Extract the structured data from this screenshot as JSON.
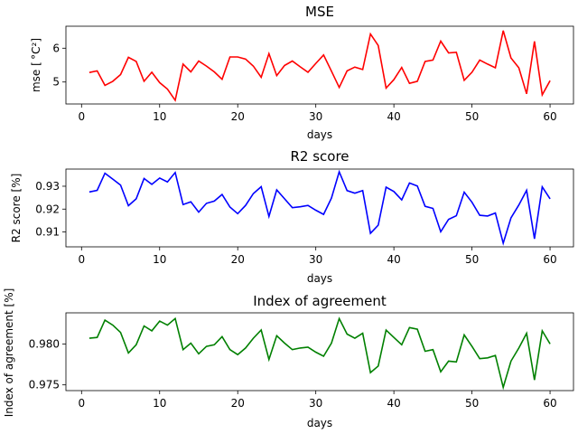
{
  "chart_data": [
    {
      "type": "line",
      "title": "MSE",
      "xlabel": "days",
      "ylabel": "mse [ °C²]",
      "xlim": [
        -2,
        63
      ],
      "ylim": [
        4.35,
        6.65
      ],
      "xticks": [
        0,
        10,
        20,
        30,
        40,
        50,
        60
      ],
      "xtick_labels": [
        "0",
        "10",
        "20",
        "30",
        "40",
        "50",
        "60"
      ],
      "yticks": [
        5,
        6
      ],
      "ytick_labels": [
        "5",
        "6"
      ],
      "color": "#ff0000",
      "series": [
        {
          "x": [
            1,
            2,
            3,
            4,
            5,
            6,
            7,
            8,
            9,
            10,
            11,
            12,
            13,
            14,
            15,
            16,
            17,
            18,
            19,
            20,
            21,
            22,
            23,
            24,
            25,
            26,
            27,
            28,
            29,
            30,
            31,
            32,
            33,
            34,
            35,
            36,
            37,
            38,
            39,
            40,
            41,
            42,
            43,
            44,
            45,
            46,
            47,
            48,
            49,
            50,
            51,
            52,
            53,
            54,
            55,
            56,
            57,
            58,
            59,
            60
          ],
          "values": [
            5.28,
            5.33,
            4.9,
            5.02,
            5.22,
            5.73,
            5.61,
            5.02,
            5.29,
            4.98,
            4.79,
            4.46,
            5.53,
            5.3,
            5.62,
            5.47,
            5.3,
            5.08,
            5.74,
            5.74,
            5.68,
            5.47,
            5.14,
            5.84,
            5.19,
            5.49,
            5.62,
            5.45,
            5.29,
            5.55,
            5.8,
            5.32,
            4.84,
            5.33,
            5.44,
            5.37,
            6.42,
            6.08,
            4.82,
            5.07,
            5.43,
            4.96,
            5.02,
            5.61,
            5.65,
            6.21,
            5.86,
            5.88,
            5.05,
            5.29,
            5.65,
            5.53,
            5.42,
            6.52,
            5.71,
            5.42,
            4.65,
            6.2,
            4.62,
            5.04
          ]
        }
      ]
    },
    {
      "type": "line",
      "title": "R2 score",
      "xlabel": "days",
      "ylabel": "R2 score [%]",
      "xlim": [
        -2,
        63
      ],
      "ylim": [
        0.9035,
        0.9375
      ],
      "xticks": [
        0,
        10,
        20,
        30,
        40,
        50,
        60
      ],
      "xtick_labels": [
        "0",
        "10",
        "20",
        "30",
        "40",
        "50",
        "60"
      ],
      "yticks": [
        0.91,
        0.92,
        0.93
      ],
      "ytick_labels": [
        "0.91",
        "0.92",
        "0.93"
      ],
      "color": "#0000ff",
      "series": [
        {
          "x": [
            1,
            2,
            3,
            4,
            5,
            6,
            7,
            8,
            9,
            10,
            11,
            12,
            13,
            14,
            15,
            16,
            17,
            18,
            19,
            20,
            21,
            22,
            23,
            24,
            25,
            26,
            27,
            28,
            29,
            30,
            31,
            32,
            33,
            34,
            35,
            36,
            37,
            38,
            39,
            40,
            41,
            42,
            43,
            44,
            45,
            46,
            47,
            48,
            49,
            50,
            51,
            52,
            53,
            54,
            55,
            56,
            57,
            58,
            59,
            60
          ],
          "values": [
            0.9275,
            0.9282,
            0.9357,
            0.9331,
            0.9305,
            0.9215,
            0.9245,
            0.9334,
            0.9308,
            0.9336,
            0.9319,
            0.936,
            0.922,
            0.9232,
            0.9187,
            0.9225,
            0.9235,
            0.9264,
            0.9209,
            0.918,
            0.9216,
            0.9268,
            0.9298,
            0.9168,
            0.9284,
            0.9245,
            0.9206,
            0.921,
            0.9216,
            0.9195,
            0.9177,
            0.9248,
            0.9363,
            0.9281,
            0.927,
            0.9281,
            0.9094,
            0.913,
            0.9296,
            0.9277,
            0.924,
            0.9314,
            0.9301,
            0.9212,
            0.9203,
            0.9101,
            0.9155,
            0.9171,
            0.9274,
            0.923,
            0.9173,
            0.917,
            0.9183,
            0.9051,
            0.9162,
            0.9218,
            0.9282,
            0.907,
            0.9297,
            0.9245
          ]
        }
      ]
    },
    {
      "type": "line",
      "title": "Index of agreement",
      "xlabel": "days",
      "ylabel": "Index of agreement [%]",
      "xlim": [
        -2,
        63
      ],
      "ylim": [
        0.9743,
        0.9838
      ],
      "xticks": [
        0,
        10,
        20,
        30,
        40,
        50,
        60
      ],
      "xtick_labels": [
        "0",
        "10",
        "20",
        "30",
        "40",
        "50",
        "60"
      ],
      "yticks": [
        0.975,
        0.98
      ],
      "ytick_labels": [
        "0.975",
        "0.980"
      ],
      "color": "#008000",
      "series": [
        {
          "x": [
            1,
            2,
            3,
            4,
            5,
            6,
            7,
            8,
            9,
            10,
            11,
            12,
            13,
            14,
            15,
            16,
            17,
            18,
            19,
            20,
            21,
            22,
            23,
            24,
            25,
            26,
            27,
            28,
            29,
            30,
            31,
            32,
            33,
            34,
            35,
            36,
            37,
            38,
            39,
            40,
            41,
            42,
            43,
            44,
            45,
            46,
            47,
            48,
            49,
            50,
            51,
            52,
            53,
            54,
            55,
            56,
            57,
            58,
            59,
            60
          ],
          "values": [
            0.9807,
            0.9808,
            0.9829,
            0.9823,
            0.9814,
            0.9789,
            0.9799,
            0.9822,
            0.9816,
            0.9828,
            0.9823,
            0.9831,
            0.9793,
            0.9801,
            0.9788,
            0.9797,
            0.9799,
            0.9809,
            0.9793,
            0.9787,
            0.9795,
            0.9807,
            0.9817,
            0.9781,
            0.981,
            0.9801,
            0.9793,
            0.9795,
            0.9796,
            0.979,
            0.9785,
            0.9801,
            0.9831,
            0.9812,
            0.9807,
            0.9813,
            0.9765,
            0.9773,
            0.9817,
            0.9808,
            0.9799,
            0.982,
            0.9818,
            0.9791,
            0.9793,
            0.9766,
            0.9779,
            0.9778,
            0.9811,
            0.9797,
            0.9782,
            0.9783,
            0.9786,
            0.9747,
            0.9779,
            0.9795,
            0.9813,
            0.9756,
            0.9816,
            0.98
          ]
        }
      ]
    }
  ]
}
